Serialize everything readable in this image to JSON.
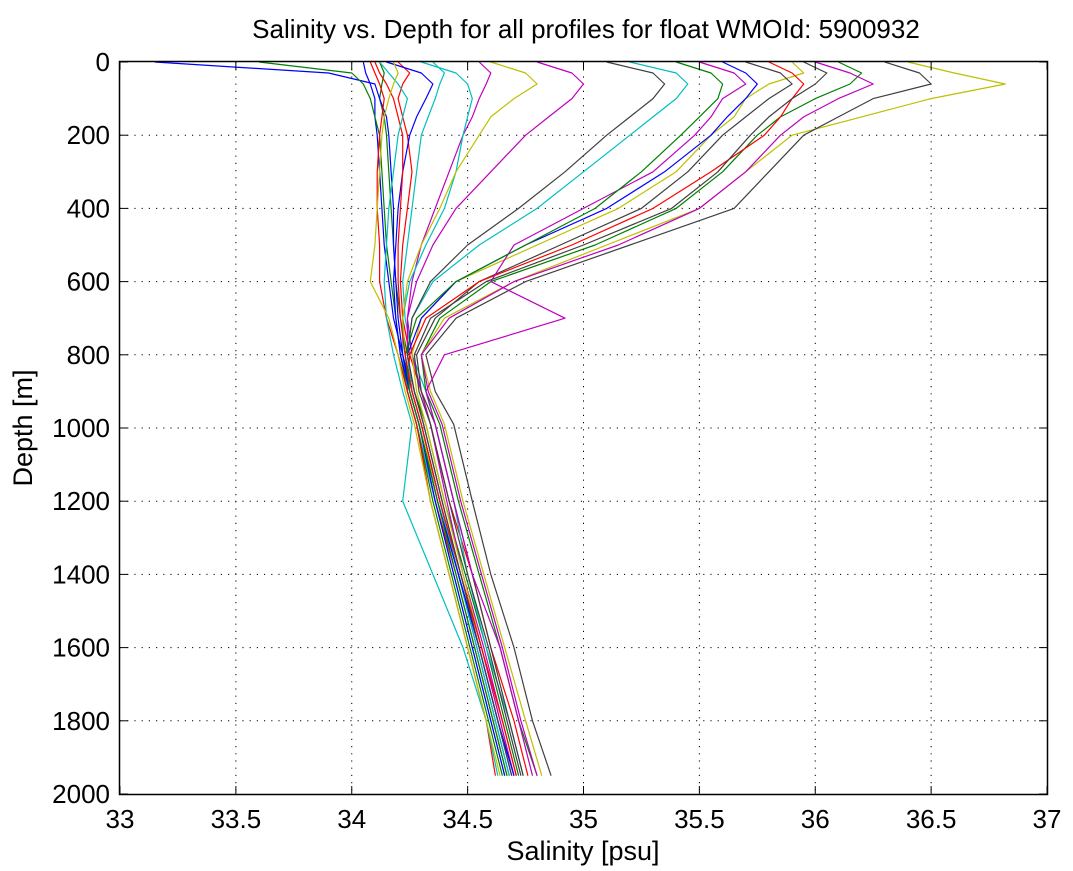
{
  "chart_data": {
    "type": "line",
    "title": "Salinity vs. Depth for all profiles for float WMOId: 5900932",
    "xlabel": "Salinity [psu]",
    "ylabel": "Depth [m]",
    "xlim": [
      33,
      37
    ],
    "ylim": [
      0,
      2000
    ],
    "y_reversed": true,
    "grid": true,
    "x_ticks": [
      "33",
      "33.5",
      "34",
      "34.5",
      "35",
      "35.5",
      "36",
      "36.5",
      "37"
    ],
    "y_ticks": [
      "0",
      "200",
      "400",
      "600",
      "800",
      "1000",
      "1200",
      "1400",
      "1600",
      "1800",
      "2000"
    ],
    "colors": [
      "#0000ff",
      "#008000",
      "#ff0000",
      "#00bfbf",
      "#bf00bf",
      "#bfbf00",
      "#404040"
    ],
    "depths": [
      0,
      30,
      60,
      100,
      150,
      200,
      300,
      400,
      500,
      600,
      700,
      800,
      900,
      990,
      1200,
      1400,
      1600,
      1800,
      1950
    ],
    "series": [
      {
        "values": [
          34.05,
          34.06,
          34.08,
          34.1,
          34.1,
          34.11,
          34.12,
          34.13,
          34.14,
          34.16,
          34.18,
          34.22,
          34.26,
          34.3,
          34.38,
          34.46,
          34.54,
          34.62,
          34.68
        ]
      },
      {
        "values": [
          34.12,
          34.14,
          34.13,
          34.12,
          34.14,
          34.15,
          34.16,
          34.17,
          34.18,
          34.19,
          34.21,
          34.24,
          34.27,
          34.32,
          34.4,
          34.49,
          34.58,
          34.66,
          34.72
        ]
      },
      {
        "values": [
          34.2,
          34.25,
          34.22,
          34.2,
          34.22,
          34.24,
          34.26,
          34.24,
          34.22,
          34.21,
          34.22,
          34.25,
          34.3,
          34.34,
          34.42,
          34.52,
          34.6,
          34.7,
          34.76
        ]
      },
      {
        "values": [
          34.35,
          34.4,
          34.38,
          34.36,
          34.33,
          34.3,
          34.28,
          34.26,
          34.24,
          34.22,
          34.23,
          34.26,
          34.32,
          34.36,
          34.44,
          34.5,
          34.58,
          34.68,
          34.74
        ]
      },
      {
        "values": [
          34.55,
          34.6,
          34.58,
          34.55,
          34.52,
          34.48,
          34.42,
          34.36,
          34.3,
          34.26,
          34.24,
          34.26,
          34.3,
          34.34,
          34.41,
          34.48,
          34.57,
          34.65,
          34.71
        ]
      },
      {
        "values": [
          35.9,
          35.95,
          35.8,
          35.7,
          35.65,
          35.55,
          35.4,
          35.15,
          34.8,
          34.45,
          34.3,
          34.26,
          34.28,
          34.32,
          34.4,
          34.48,
          34.56,
          34.64,
          34.7
        ]
      },
      {
        "values": [
          35.7,
          35.85,
          35.9,
          35.8,
          35.7,
          35.6,
          35.45,
          35.25,
          34.9,
          34.55,
          34.36,
          34.28,
          34.3,
          34.36,
          34.44,
          34.52,
          34.6,
          34.68,
          34.74
        ]
      },
      {
        "values": [
          35.6,
          35.7,
          35.75,
          35.7,
          35.62,
          35.55,
          35.35,
          35.1,
          34.75,
          34.45,
          34.3,
          34.24,
          34.26,
          34.3,
          34.38,
          34.46,
          34.55,
          34.63,
          34.69
        ]
      },
      {
        "values": [
          36.1,
          36.2,
          36.15,
          36.0,
          35.85,
          35.75,
          35.6,
          35.4,
          35.05,
          34.6,
          34.38,
          34.3,
          34.32,
          34.38,
          34.46,
          34.55,
          34.64,
          34.72,
          34.8
        ]
      },
      {
        "values": [
          35.8,
          35.9,
          35.95,
          35.9,
          35.85,
          35.78,
          35.55,
          35.3,
          34.95,
          34.55,
          34.32,
          34.25,
          34.24,
          34.28,
          34.36,
          34.45,
          34.53,
          34.61,
          34.67
        ]
      },
      {
        "values": [
          34.3,
          34.45,
          34.5,
          34.52,
          34.5,
          34.48,
          34.45,
          34.4,
          34.32,
          34.25,
          34.22,
          34.22,
          34.24,
          34.28,
          34.36,
          34.44,
          34.52,
          34.6,
          34.66
        ]
      },
      {
        "values": [
          34.8,
          34.95,
          35.0,
          34.95,
          34.85,
          34.75,
          34.6,
          34.45,
          34.35,
          34.28,
          34.24,
          34.24,
          34.27,
          34.31,
          34.39,
          34.47,
          34.56,
          34.64,
          34.7
        ]
      },
      {
        "values": [
          36.4,
          36.6,
          36.82,
          36.5,
          36.2,
          35.9,
          35.7,
          35.5,
          35.1,
          34.7,
          34.4,
          34.3,
          34.34,
          34.4,
          34.48,
          34.57,
          34.66,
          34.75,
          34.82
        ]
      },
      {
        "values": [
          36.3,
          36.45,
          36.5,
          36.25,
          36.1,
          35.95,
          35.8,
          35.65,
          35.2,
          34.75,
          34.45,
          34.32,
          34.36,
          34.44,
          34.52,
          34.6,
          34.7,
          34.78,
          34.86
        ]
      },
      {
        "values": [
          33.15,
          33.9,
          34.1,
          34.12,
          34.15,
          34.16,
          34.17,
          34.18,
          34.18,
          34.19,
          34.2,
          34.22,
          34.25,
          34.29,
          34.36,
          34.44,
          34.52,
          34.6,
          34.66
        ]
      },
      {
        "values": [
          33.6,
          34.0,
          34.05,
          34.08,
          34.1,
          34.12,
          34.13,
          34.14,
          34.15,
          34.17,
          34.19,
          34.21,
          34.24,
          34.28,
          34.35,
          34.43,
          34.51,
          34.59,
          34.65
        ]
      },
      {
        "values": [
          34.08,
          34.1,
          34.12,
          34.14,
          34.13,
          34.12,
          34.11,
          34.11,
          34.12,
          34.12,
          34.15,
          34.2,
          34.24,
          34.28,
          34.34,
          34.42,
          34.5,
          34.58,
          34.62
        ]
      },
      {
        "values": [
          35.2,
          35.4,
          35.45,
          35.4,
          35.3,
          35.2,
          35.0,
          34.8,
          34.55,
          34.35,
          34.26,
          34.24,
          34.26,
          34.3,
          34.38,
          34.46,
          34.54,
          34.62,
          34.68
        ]
      },
      {
        "values": [
          35.5,
          35.65,
          35.7,
          35.6,
          35.55,
          35.48,
          35.3,
          35.0,
          34.7,
          34.6,
          34.92,
          34.4,
          34.32,
          34.36,
          34.44,
          34.52,
          34.64,
          34.72,
          34.78
        ]
      },
      {
        "values": [
          34.6,
          34.75,
          34.8,
          34.7,
          34.6,
          34.55,
          34.45,
          34.38,
          34.3,
          34.24,
          34.22,
          34.23,
          34.26,
          34.3,
          34.37,
          34.45,
          34.53,
          34.61,
          34.67
        ]
      },
      {
        "values": [
          35.95,
          36.05,
          36.0,
          35.9,
          35.8,
          35.72,
          35.58,
          35.38,
          35.0,
          34.58,
          34.34,
          34.27,
          34.29,
          34.34,
          34.42,
          34.5,
          34.59,
          34.67,
          34.73
        ]
      },
      {
        "values": [
          34.15,
          34.3,
          34.35,
          34.32,
          34.28,
          34.25,
          34.22,
          34.2,
          34.19,
          34.18,
          34.19,
          34.21,
          34.25,
          34.29,
          34.37,
          34.46,
          34.55,
          34.63,
          34.7
        ]
      },
      {
        "values": [
          35.4,
          35.55,
          35.6,
          35.58,
          35.5,
          35.42,
          35.25,
          35.05,
          34.75,
          34.45,
          34.28,
          34.23,
          34.25,
          34.29,
          34.37,
          34.45,
          34.53,
          34.61,
          34.67
        ]
      },
      {
        "values": [
          34.1,
          34.12,
          34.15,
          34.18,
          34.2,
          34.22,
          34.22,
          34.21,
          34.2,
          34.2,
          34.21,
          34.23,
          34.26,
          34.3,
          34.38,
          34.47,
          34.56,
          34.65,
          34.71
        ]
      },
      {
        "values": [
          34.12,
          34.16,
          34.2,
          34.24,
          34.22,
          34.2,
          34.18,
          34.16,
          34.15,
          34.14,
          34.15,
          34.18,
          34.22,
          34.26,
          34.22,
          34.35,
          34.48,
          34.58,
          34.63
        ]
      },
      {
        "values": [
          36.0,
          36.15,
          36.25,
          36.1,
          35.95,
          35.85,
          35.7,
          35.5,
          35.15,
          34.7,
          34.42,
          34.3,
          34.33,
          34.39,
          34.47,
          34.56,
          34.65,
          34.73,
          34.8
        ]
      },
      {
        "values": [
          34.18,
          34.2,
          34.18,
          34.16,
          34.14,
          34.13,
          34.12,
          34.11,
          34.1,
          34.08,
          34.16,
          34.2,
          34.23,
          34.27,
          34.34,
          34.42,
          34.5,
          34.58,
          34.64
        ]
      },
      {
        "values": [
          35.1,
          35.3,
          35.35,
          35.3,
          35.2,
          35.1,
          34.92,
          34.72,
          34.5,
          34.34,
          34.26,
          34.24,
          34.27,
          34.31,
          34.39,
          34.47,
          34.55,
          34.63,
          34.69
        ]
      }
    ]
  }
}
